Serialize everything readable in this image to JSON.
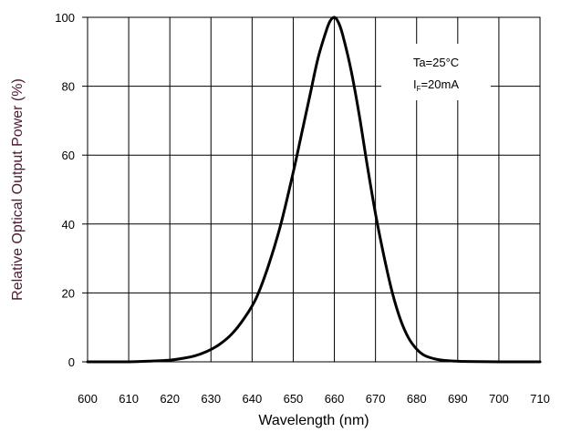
{
  "chart_data": {
    "type": "line",
    "title": "",
    "xlabel": "Wavelength  (nm)",
    "ylabel": "Relative Optical Output Power  (%)",
    "xlim": [
      600,
      710
    ],
    "ylim": [
      0,
      100
    ],
    "x_ticks": [
      "600",
      "610",
      "620",
      "630",
      "640",
      "650",
      "660",
      "670",
      "680",
      "690",
      "700",
      "710"
    ],
    "y_ticks": [
      "0",
      "20",
      "40",
      "60",
      "80",
      "100"
    ],
    "grid": true,
    "series": [
      {
        "x": [
          600,
          605,
          610,
          615,
          620,
          623,
          626,
          629,
          632,
          635,
          638,
          641,
          644,
          647,
          650,
          652,
          654,
          656,
          658,
          659,
          660,
          661,
          662,
          664,
          666,
          668,
          670,
          672,
          674,
          676,
          678,
          680,
          682,
          685,
          688,
          692,
          700,
          710
        ],
        "y": [
          0,
          0,
          0,
          0.2,
          0.5,
          1,
          1.7,
          3,
          5,
          8,
          12.5,
          18.5,
          28,
          40,
          55,
          66,
          77,
          88,
          96,
          99,
          100,
          98.5,
          95,
          85,
          72,
          57,
          43,
          31,
          20.5,
          12.5,
          7,
          3.7,
          1.8,
          0.7,
          0.3,
          0.1,
          0,
          0
        ]
      }
    ],
    "annotations": {
      "ta": "Ta=25°C",
      "if_text": "I=20mA",
      "if_main": "I",
      "if_sub": "F",
      "if_rest": "=20mA"
    },
    "colors": {
      "line": "#000000",
      "grid": "#000000",
      "xlabel": "#000000",
      "ylabel": "#4d1a33"
    }
  }
}
